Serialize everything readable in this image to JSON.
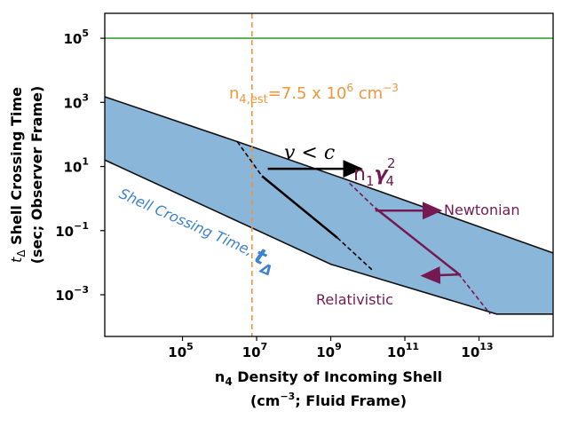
{
  "chart_data": {
    "type": "area",
    "x_scale": "log",
    "y_scale": "log",
    "xlim": [
      800,
      1000000000000000
    ],
    "ylim": [
      5e-05,
      600000
    ],
    "x_ticks": [
      {
        "value": 100000,
        "base": "10",
        "exp": "5"
      },
      {
        "value": 10000000,
        "base": "10",
        "exp": "7"
      },
      {
        "value": 1000000000,
        "base": "10",
        "exp": "9"
      },
      {
        "value": 100000000000,
        "base": "10",
        "exp": "11"
      },
      {
        "value": 10000000000000,
        "base": "10",
        "exp": "13"
      }
    ],
    "y_ticks": [
      {
        "value": 100000,
        "base": "10",
        "exp": "5"
      },
      {
        "value": 1000,
        "base": "10",
        "exp": "3"
      },
      {
        "value": 10,
        "base": "10",
        "exp": "1"
      },
      {
        "value": 0.1,
        "base": "10",
        "exp": "−1"
      },
      {
        "value": 0.001,
        "base": "10",
        "exp": "−3"
      }
    ],
    "xlabel_line1_pre": "n",
    "xlabel_line1_sub": "4",
    "xlabel_line1_post": " Density of Incoming Shell",
    "xlabel_line2_pre": "(cm",
    "xlabel_line2_sup": "−3",
    "xlabel_line2_post": "; Fluid Frame)",
    "ylabel_line1_pre": "t",
    "ylabel_line1_sub": "Δ",
    "ylabel_line1_post": " Shell Crossing Time",
    "ylabel_line2": "(sec; Observer Frame)",
    "colors": {
      "band_fill": "#8ab6d9",
      "band_edge": "#111111",
      "horizontal_line": "#3aa335",
      "vertical_line": "#f0953a",
      "newtonian": "#741a50",
      "blue_text": "#3f82cf",
      "black": "#000000"
    },
    "shell_crossing_band": {
      "upper": [
        [
          800,
          1500
        ],
        [
          3000000,
          60
        ],
        [
          2500000000,
          4
        ],
        [
          1000000000000000,
          0.02
        ]
      ],
      "lower": [
        [
          800,
          16
        ],
        [
          1000000000,
          0.009
        ],
        [
          30000000000000,
          0.00025
        ],
        [
          1000000000000000,
          0.00025
        ]
      ]
    },
    "horizontal_line": {
      "y": 100000
    },
    "vertical_line": {
      "x": 7500000
    },
    "annotations": {
      "vertical_label_pre": "n",
      "vertical_label_sub": "4,est",
      "vertical_label_mid": "=7.5 x 10",
      "vertical_label_sup": "6",
      "vertical_label_post": " cm",
      "vertical_label_sup2": "−3",
      "v_lt_c": "v < c",
      "n1_gamma_pre": "n",
      "n1_gamma_sub1": "1",
      "n1_gamma_gamma": "γ",
      "n1_gamma_sub2": "4",
      "n1_gamma_sup": "2",
      "newtonian": "Newtonian",
      "relativistic": "Relativistic",
      "shell_crossing_label": "Shell Crossing Time, ",
      "shell_crossing_symbol": "t",
      "shell_crossing_symbol_sub": "Δ"
    },
    "black_line": {
      "dashed": [
        [
          3000000,
          60
        ],
        [
          14000000,
          5
        ]
      ],
      "solid": [
        [
          14000000,
          5
        ],
        [
          1500000000,
          0.06
        ]
      ],
      "dashed2": [
        [
          1500000000,
          0.06
        ],
        [
          13000000000,
          0.006
        ]
      ],
      "arrow": [
        [
          20000000,
          8.5
        ],
        [
          6500000000,
          8.5
        ]
      ]
    },
    "purple_line": {
      "dashed": [
        [
          3200000000,
          3
        ],
        [
          16000000000,
          0.5
        ]
      ],
      "solid": [
        [
          16000000000,
          0.5
        ],
        [
          2800000000000,
          0.0045
        ]
      ],
      "dashed2": [
        [
          2800000000000,
          0.0045
        ],
        [
          20000000000000,
          0.00025
        ]
      ],
      "arrow_newtonian": [
        [
          16000000000,
          0.42
        ],
        [
          900000000000,
          0.42
        ]
      ],
      "arrow_relativistic": [
        [
          3200000000000,
          0.0043
        ],
        [
          300000000000,
          0.0039
        ]
      ]
    }
  }
}
